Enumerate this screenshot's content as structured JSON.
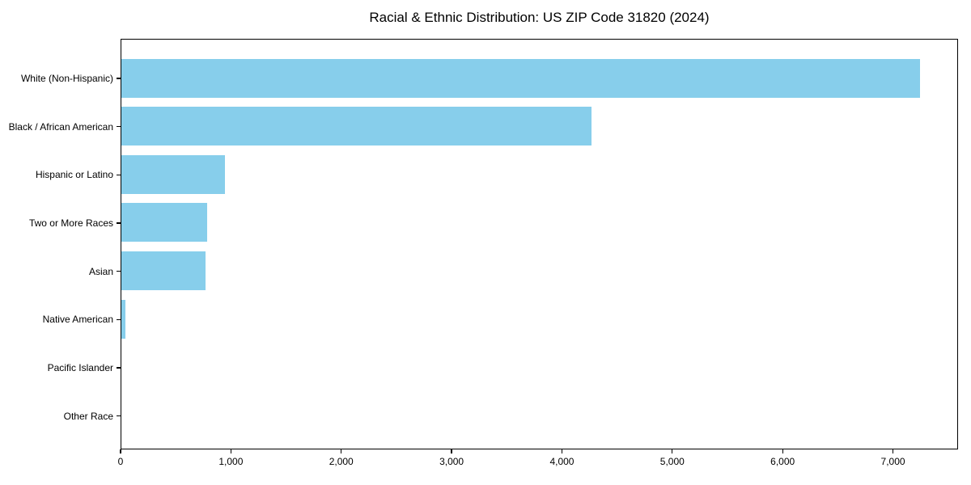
{
  "chart_data": {
    "type": "bar",
    "orientation": "horizontal",
    "title": "Racial & Ethnic Distribution: US ZIP Code 31820 (2024)",
    "categories": [
      "White (Non-Hispanic)",
      "Black / African American",
      "Hispanic or Latino",
      "Two or More Races",
      "Asian",
      "Native American",
      "Pacific Islander",
      "Other Race"
    ],
    "values": [
      7240,
      4260,
      940,
      775,
      760,
      35,
      0,
      0
    ],
    "xlabel": "",
    "ylabel": "",
    "xlim": [
      0,
      7590
    ],
    "xticks": [
      0,
      1000,
      2000,
      3000,
      4000,
      5000,
      6000,
      7000
    ],
    "xtick_labels": [
      "0",
      "1,000",
      "2,000",
      "3,000",
      "4,000",
      "5,000",
      "6,000",
      "7,000"
    ],
    "bar_color": "#87CEEB",
    "axis_color": "#000000",
    "background_color": "#ffffff",
    "grid": false,
    "legend": null
  }
}
